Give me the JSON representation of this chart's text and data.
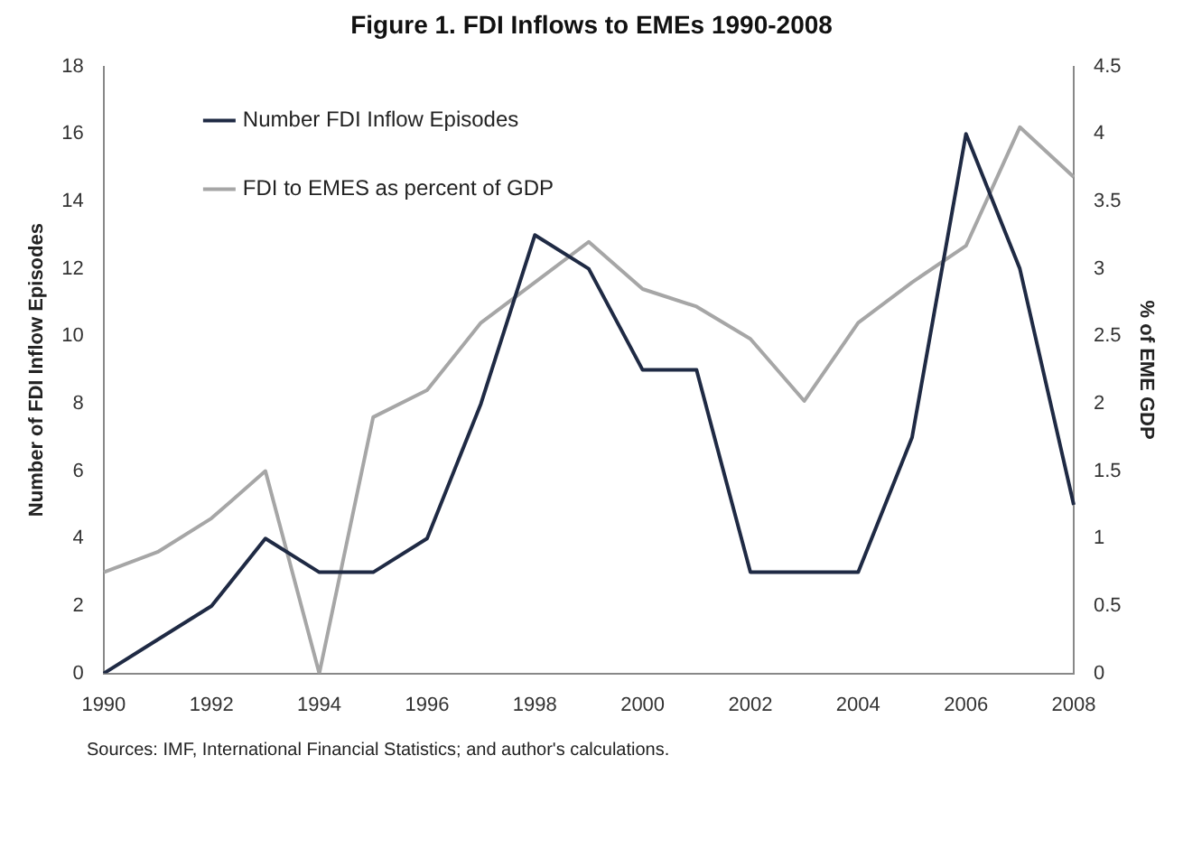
{
  "chart_data": {
    "type": "line",
    "title": "Figure 1. FDI Inflows to EMEs 1990-2008",
    "ylabel": "Number of FDI Inflow Episodes",
    "y2label": "% of EME GDP",
    "categories": [
      "1990",
      null,
      "1992",
      null,
      "1994",
      null,
      "1996",
      null,
      "1998",
      null,
      "2000",
      null,
      "2002",
      null,
      "2004",
      null,
      "2006",
      null,
      "2008"
    ],
    "series": [
      {
        "name": "Number FDI Inflow Episodes",
        "color": "#1f2a44",
        "values": [
          0,
          1,
          2,
          4,
          3,
          3,
          4,
          8,
          13,
          12,
          9,
          9,
          3,
          3,
          3,
          7,
          16,
          12,
          5
        ]
      },
      {
        "name": "FDI to EMES as percent of GDP",
        "color": "#a6a6a6",
        "axis": "y2",
        "values": [
          0.75,
          0.9,
          1.15,
          1.5,
          0,
          1.9,
          2.1,
          2.6,
          2.9,
          3.2,
          2.85,
          2.72,
          2.48,
          2.02,
          2.6,
          2.9,
          3.17,
          4.05,
          3.68
        ]
      }
    ],
    "ylim": [
      0,
      18
    ],
    "yticks": [
      0,
      2,
      4,
      6,
      8,
      10,
      12,
      14,
      16,
      18
    ],
    "y2lim": [
      0,
      4.5
    ],
    "y2ticks": [
      0,
      0.5,
      1,
      1.5,
      2,
      2.5,
      3,
      3.5,
      4,
      4.5
    ],
    "legend": "top left",
    "grid": false,
    "marker": "none",
    "line_style": "solid",
    "annotations": [
      "Sources: IMF, International Financial Statistics; and author's calculations."
    ]
  }
}
